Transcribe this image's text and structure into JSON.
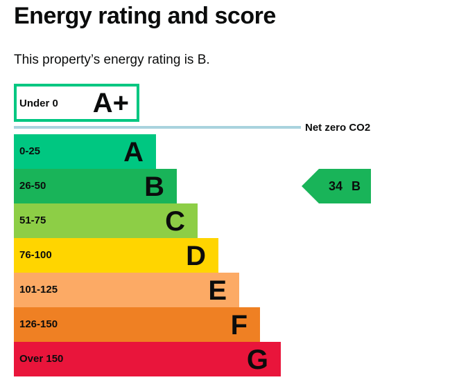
{
  "heading": "Energy rating and score",
  "summary": {
    "prefix": "This property’s energy rating is ",
    "rating": "B",
    "suffix": "."
  },
  "chart_data": {
    "type": "bar",
    "title": "",
    "net_zero_label": "Net zero CO2",
    "aplus_band": {
      "range": "Under 0",
      "letter": "A+",
      "color": "#00c781"
    },
    "bands": [
      {
        "range": "0-25",
        "letter": "A",
        "color": "#00c781"
      },
      {
        "range": "26-50",
        "letter": "B",
        "color": "#19b459"
      },
      {
        "range": "51-75",
        "letter": "C",
        "color": "#8dce46"
      },
      {
        "range": "76-100",
        "letter": "D",
        "color": "#ffd500"
      },
      {
        "range": "101-125",
        "letter": "E",
        "color": "#fcaa65"
      },
      {
        "range": "126-150",
        "letter": "F",
        "color": "#ef8023"
      },
      {
        "range": "Over 150",
        "letter": "G",
        "color": "#e9153b"
      }
    ],
    "current": {
      "score": "34",
      "rating": "B",
      "color": "#19b459"
    },
    "net_zero_line_color": "#a9d3de"
  }
}
